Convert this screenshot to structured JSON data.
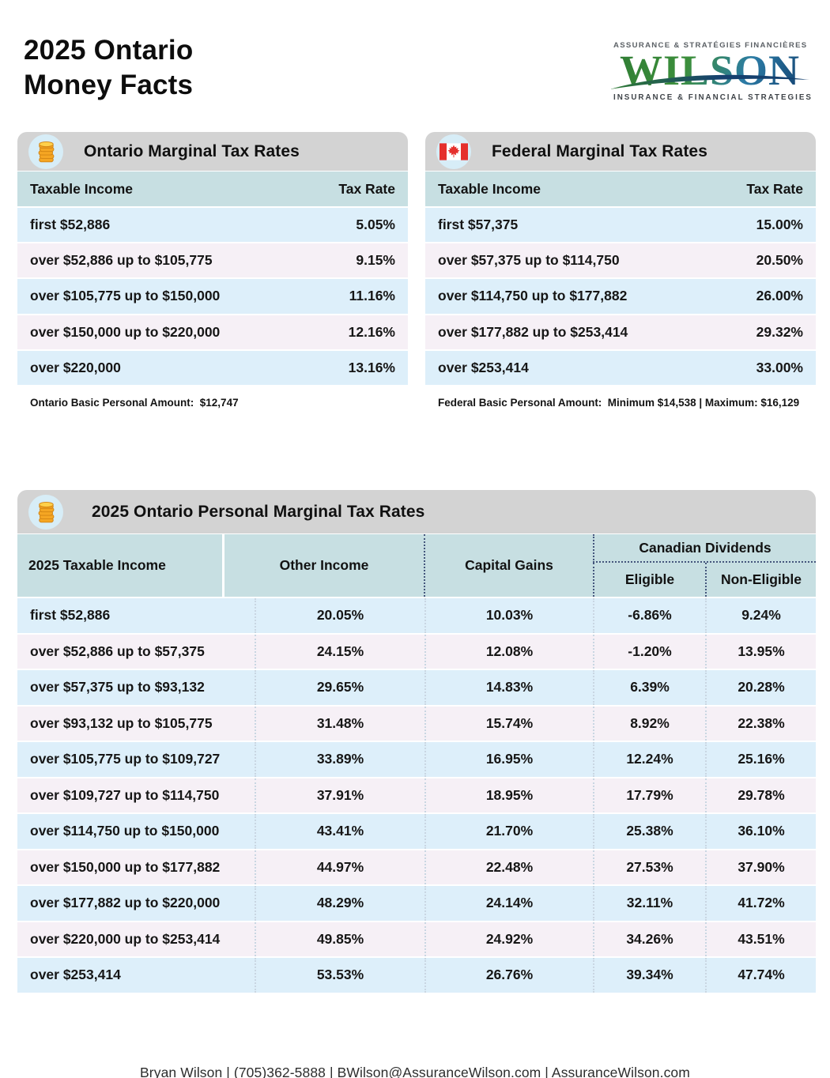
{
  "header": {
    "title_line1": "2025 Ontario",
    "title_line2": "Money Facts"
  },
  "logo": {
    "top_text": "ASSURANCE & STRATÉGIES FINANCIÈRES",
    "name": "WILSON",
    "bottom_text": "INSURANCE & FINANCIAL STRATEGIES"
  },
  "ontario_table": {
    "title": "Ontario Marginal Tax Rates",
    "columns": {
      "income": "Taxable Income",
      "rate": "Tax Rate"
    },
    "rows": [
      {
        "income": "first $52,886",
        "rate": "5.05%"
      },
      {
        "income": "over $52,886 up to $105,775",
        "rate": "9.15%"
      },
      {
        "income": "over $105,775 up to $150,000",
        "rate": "11.16%"
      },
      {
        "income": "over $150,000 up to $220,000",
        "rate": "12.16%"
      },
      {
        "income": "over $220,000",
        "rate": "13.16%"
      }
    ],
    "note": "Ontario Basic Personal Amount:  $12,747"
  },
  "federal_table": {
    "title": "Federal Marginal Tax Rates",
    "columns": {
      "income": "Taxable Income",
      "rate": "Tax Rate"
    },
    "rows": [
      {
        "income": "first $57,375",
        "rate": "15.00%"
      },
      {
        "income": "over $57,375 up to $114,750",
        "rate": "20.50%"
      },
      {
        "income": "over $114,750 up to $177,882",
        "rate": "26.00%"
      },
      {
        "income": "over $177,882 up to $253,414",
        "rate": "29.32%"
      },
      {
        "income": "over $253,414",
        "rate": "33.00%"
      }
    ],
    "note": "Federal Basic Personal Amount:  Minimum $14,538 | Maximum: $16,129"
  },
  "combined_table": {
    "title": "2025 Ontario Personal Marginal Tax Rates",
    "columns": {
      "income": "2025 Taxable Income",
      "other": "Other Income",
      "capital_gains": "Capital Gains",
      "dividends_group": "Canadian Dividends",
      "eligible": "Eligible",
      "non_eligible": "Non-Eligible"
    },
    "rows": [
      {
        "income": "first $52,886",
        "other": "20.05%",
        "capital_gains": "10.03%",
        "eligible": "-6.86%",
        "non_eligible": "9.24%"
      },
      {
        "income": "over $52,886 up to $57,375",
        "other": "24.15%",
        "capital_gains": "12.08%",
        "eligible": "-1.20%",
        "non_eligible": "13.95%"
      },
      {
        "income": "over $57,375 up to $93,132",
        "other": "29.65%",
        "capital_gains": "14.83%",
        "eligible": "6.39%",
        "non_eligible": "20.28%"
      },
      {
        "income": "over $93,132 up to $105,775",
        "other": "31.48%",
        "capital_gains": "15.74%",
        "eligible": "8.92%",
        "non_eligible": "22.38%"
      },
      {
        "income": "over $105,775 up to $109,727",
        "other": "33.89%",
        "capital_gains": "16.95%",
        "eligible": "12.24%",
        "non_eligible": "25.16%"
      },
      {
        "income": "over $109,727 up to $114,750",
        "other": "37.91%",
        "capital_gains": "18.95%",
        "eligible": "17.79%",
        "non_eligible": "29.78%"
      },
      {
        "income": "over $114,750 up to $150,000",
        "other": "43.41%",
        "capital_gains": "21.70%",
        "eligible": "25.38%",
        "non_eligible": "36.10%"
      },
      {
        "income": "over $150,000 up to $177,882",
        "other": "44.97%",
        "capital_gains": "22.48%",
        "eligible": "27.53%",
        "non_eligible": "37.90%"
      },
      {
        "income": "over $177,882 up to $220,000",
        "other": "48.29%",
        "capital_gains": "24.14%",
        "eligible": "32.11%",
        "non_eligible": "41.72%"
      },
      {
        "income": "over $220,000 up to $253,414",
        "other": "49.85%",
        "capital_gains": "24.92%",
        "eligible": "34.26%",
        "non_eligible": "43.51%"
      },
      {
        "income": "over $253,414",
        "other": "53.53%",
        "capital_gains": "26.76%",
        "eligible": "39.34%",
        "non_eligible": "47.74%"
      }
    ]
  },
  "footer": {
    "text": "Bryan Wilson | (705)362-5888 | BWilson@AssuranceWilson.com | AssuranceWilson.com"
  },
  "colors": {
    "header_band": "#d3d3d3",
    "column_header_teal": "#c7dfe2",
    "row_blue": "#ddeffa",
    "row_lavender": "#f6f0f6",
    "dotted_navy": "#44567c",
    "flag_red": "#e5302d",
    "coin_orange": "#f5a623",
    "logo_green": "#2f7c33",
    "logo_blue": "#123f6e"
  }
}
